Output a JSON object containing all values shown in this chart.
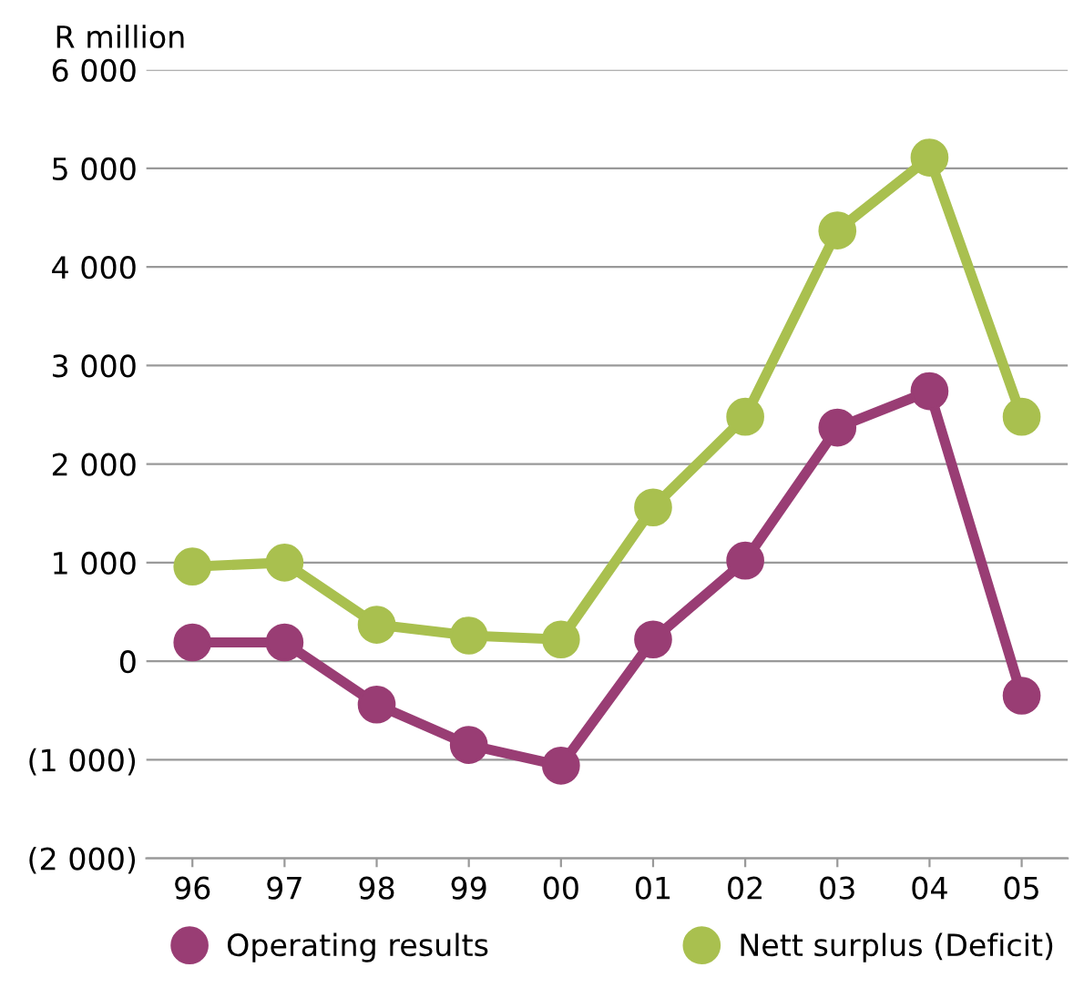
{
  "chart_data": {
    "type": "line",
    "ylabel": "R million",
    "categories": [
      "96",
      "97",
      "98",
      "99",
      "00",
      "01",
      "02",
      "03",
      "04",
      "05"
    ],
    "series": [
      {
        "name": "Operating results",
        "color": "#993d74",
        "values": [
          190,
          190,
          -440,
          -850,
          -1060,
          220,
          1020,
          2370,
          2740,
          -350
        ]
      },
      {
        "name": "Nett surplus (Deficit)",
        "color": "#a9c04f",
        "values": [
          960,
          1000,
          370,
          260,
          220,
          1560,
          2480,
          4370,
          5110,
          2480
        ]
      }
    ],
    "ylim": [
      -2000,
      6000
    ],
    "yticks": [
      {
        "value": -2000,
        "label": "(2 000)"
      },
      {
        "value": -1000,
        "label": "(1 000)"
      },
      0,
      {
        "value": 1000,
        "label": "1 000"
      },
      {
        "value": 2000,
        "label": "2 000"
      },
      {
        "value": 3000,
        "label": "3 000"
      },
      {
        "value": 4000,
        "label": "4 000"
      },
      {
        "value": 5000,
        "label": "5 000"
      },
      {
        "value": 6000,
        "label": "6 000"
      }
    ],
    "grid": "y",
    "legend": "bottom",
    "marker": "circle",
    "line_style": "solid"
  }
}
